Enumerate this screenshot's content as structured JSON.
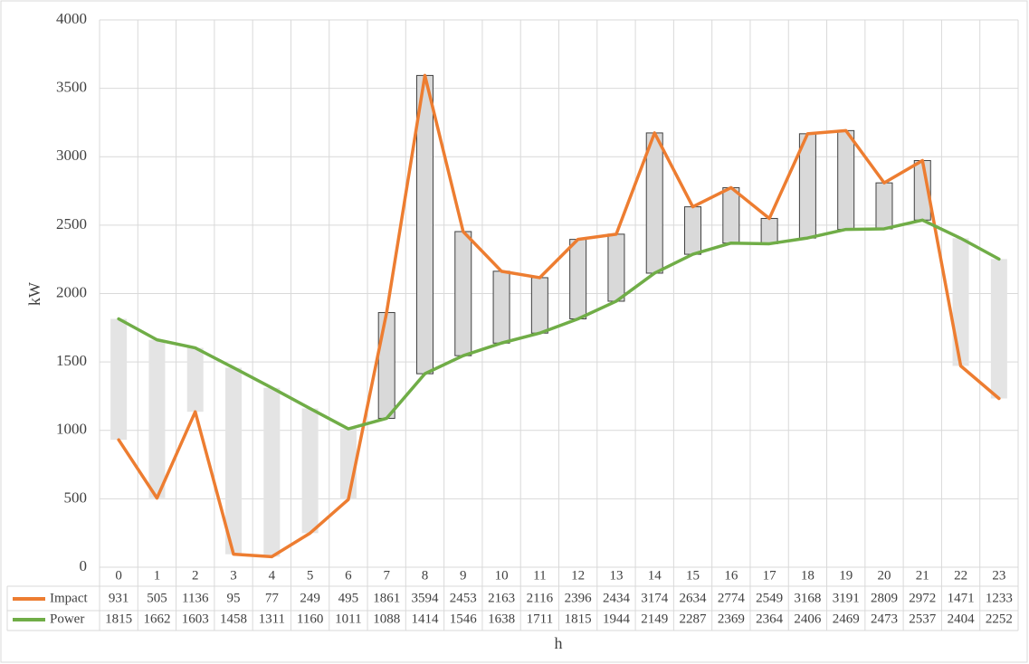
{
  "chart_data": {
    "type": "line",
    "y_label": "kW",
    "x_label": "h",
    "categories": [
      "0",
      "1",
      "2",
      "3",
      "4",
      "5",
      "6",
      "7",
      "8",
      "9",
      "10",
      "11",
      "12",
      "13",
      "14",
      "15",
      "16",
      "17",
      "18",
      "19",
      "20",
      "21",
      "22",
      "23"
    ],
    "series": [
      {
        "name": "Impact",
        "color": "#ED7D31",
        "values": [
          931,
          505,
          1136,
          95,
          77,
          249,
          495,
          1861,
          3594,
          2453,
          2163,
          2116,
          2396,
          2434,
          3174,
          2634,
          2774,
          2549,
          3168,
          3191,
          2809,
          2972,
          1471,
          1233
        ]
      },
      {
        "name": "Power",
        "color": "#70AD47",
        "values": [
          1815,
          1662,
          1603,
          1458,
          1311,
          1160,
          1011,
          1088,
          1414,
          1546,
          1638,
          1711,
          1815,
          1944,
          2149,
          2287,
          2369,
          2364,
          2406,
          2469,
          2473,
          2537,
          2404,
          2252
        ]
      }
    ],
    "ylim": [
      0,
      4000
    ],
    "yticks": [
      0,
      500,
      1000,
      1500,
      2000,
      2500,
      3000,
      3500,
      4000
    ],
    "grid": true,
    "up_down_bars": true
  }
}
